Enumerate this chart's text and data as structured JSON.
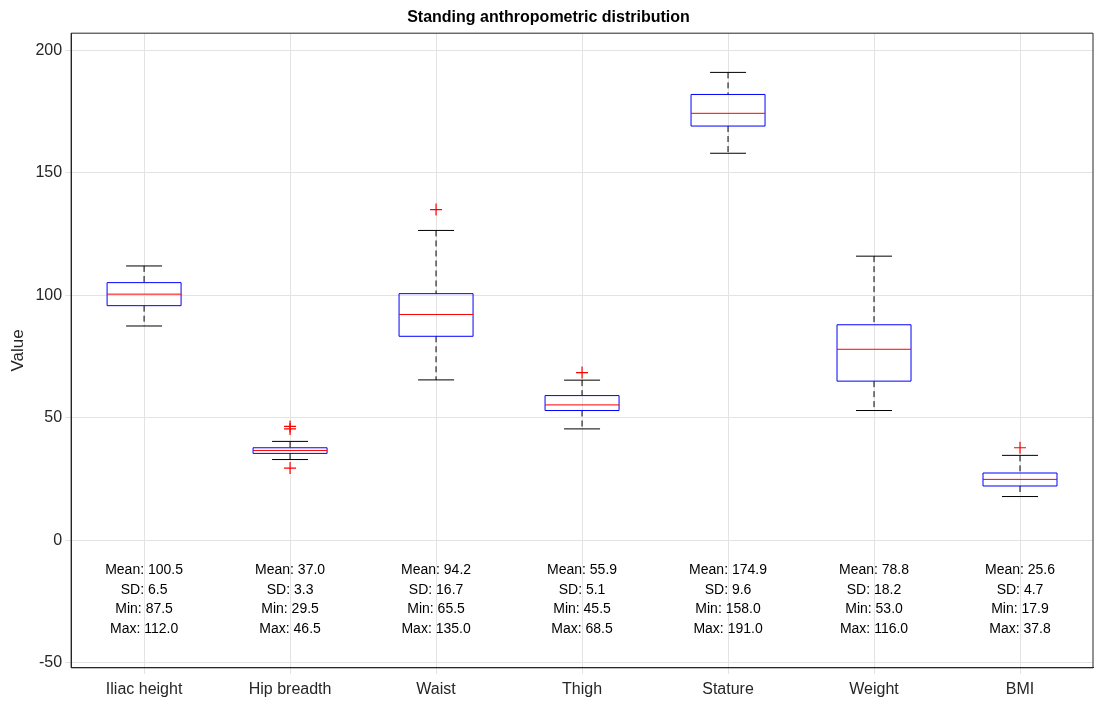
{
  "chart_data": {
    "type": "box",
    "title": "Standing anthropometric distribution",
    "ylabel": "Value",
    "categories": [
      "Iliac height",
      "Hip breadth",
      "Waist",
      "Thigh",
      "Stature",
      "Weight",
      "BMI"
    ],
    "color": "#0000ff",
    "boxes": [
      {
        "low": 87.5,
        "q1": 95.8,
        "median": 100.5,
        "q3": 105.2,
        "high": 112.0
      },
      {
        "low": 33.0,
        "q1": 35.5,
        "median": 36.7,
        "q3": 37.8,
        "high": 40.4,
        "outliers": [
          46.5,
          45.5,
          29.5
        ]
      },
      {
        "low": 65.5,
        "q1": 83.3,
        "median": 92.2,
        "q3": 100.7,
        "high": 126.5,
        "outliers": [
          135.0
        ]
      },
      {
        "low": 45.5,
        "q1": 53.0,
        "median": 55.3,
        "q3": 59.1,
        "high": 65.4,
        "outliers": [
          68.5
        ]
      },
      {
        "low": 158.0,
        "q1": 169.1,
        "median": 174.3,
        "q3": 182.0,
        "high": 191.0
      },
      {
        "low": 53.0,
        "q1": 65.0,
        "median": 78.0,
        "q3": 88.0,
        "high": 116.0
      },
      {
        "low": 17.9,
        "q1": 22.2,
        "median": 24.9,
        "q3": 27.5,
        "high": 34.7,
        "outliers": [
          37.8
        ]
      }
    ],
    "ylim": [
      -52,
      207
    ],
    "yticks": [
      -50,
      0,
      50,
      100,
      150,
      200
    ],
    "grid": true,
    "annotations": [
      "Mean: 100.5\nSD: 6.5\nMin: 87.5\nMax: 112.0",
      "Mean: 37.0\nSD: 3.3\nMin: 29.5\nMax: 46.5",
      "Mean: 94.2\nSD: 16.7\nMin: 65.5\nMax: 135.0",
      "Mean: 55.9\nSD: 5.1\nMin: 45.5\nMax: 68.5",
      "Mean: 174.9\nSD: 9.6\nMin: 158.0\nMax: 191.0",
      "Mean: 78.8\nSD: 18.2\nMin: 53.0\nMax: 116.0",
      "Mean: 25.6\nSD: 4.7\nMin: 17.9\nMax: 37.8"
    ]
  }
}
